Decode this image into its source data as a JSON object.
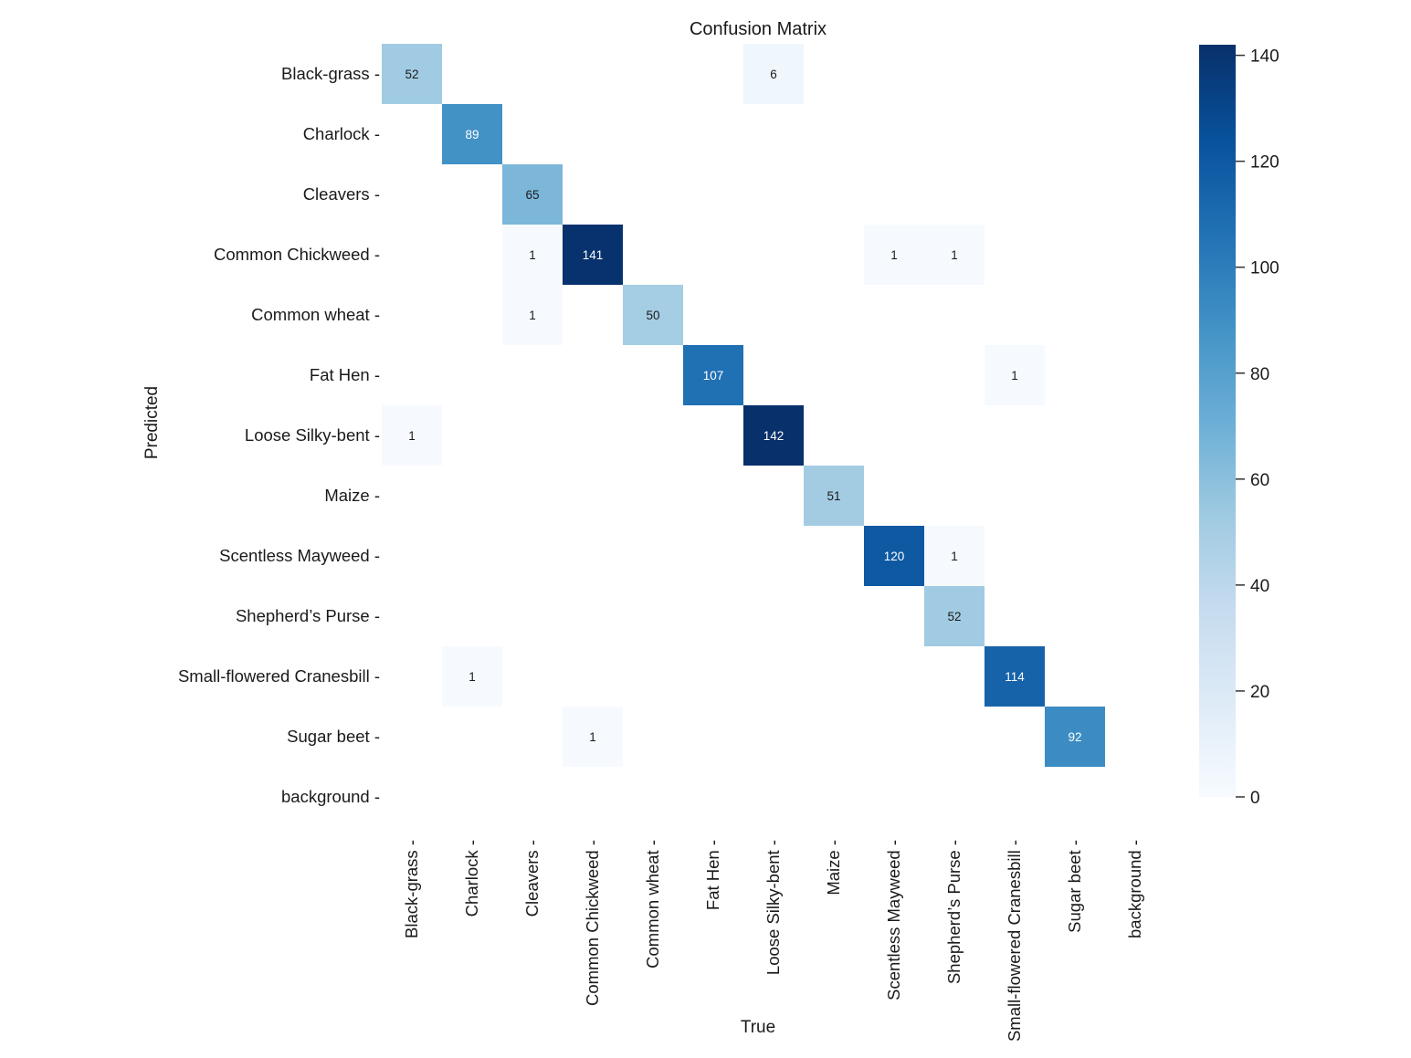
{
  "chart_data": {
    "type": "heatmap",
    "title": "Confusion Matrix",
    "xlabel": "True",
    "ylabel": "Predicted",
    "categories": [
      "Black-grass",
      "Charlock",
      "Cleavers",
      "Common Chickweed",
      "Common wheat",
      "Fat Hen",
      "Loose Silky-bent",
      "Maize",
      "Scentless Mayweed",
      "Shepherd’s Purse",
      "Small-flowered Cranesbill",
      "Sugar beet",
      "background"
    ],
    "cells": [
      {
        "row": 0,
        "col": 0,
        "value": 52
      },
      {
        "row": 0,
        "col": 6,
        "value": 6
      },
      {
        "row": 1,
        "col": 1,
        "value": 89
      },
      {
        "row": 2,
        "col": 2,
        "value": 65
      },
      {
        "row": 3,
        "col": 2,
        "value": 1
      },
      {
        "row": 3,
        "col": 3,
        "value": 141
      },
      {
        "row": 3,
        "col": 8,
        "value": 1
      },
      {
        "row": 3,
        "col": 9,
        "value": 1
      },
      {
        "row": 4,
        "col": 2,
        "value": 1
      },
      {
        "row": 4,
        "col": 4,
        "value": 50
      },
      {
        "row": 5,
        "col": 5,
        "value": 107
      },
      {
        "row": 5,
        "col": 10,
        "value": 1
      },
      {
        "row": 6,
        "col": 0,
        "value": 1
      },
      {
        "row": 6,
        "col": 6,
        "value": 142
      },
      {
        "row": 7,
        "col": 7,
        "value": 51
      },
      {
        "row": 8,
        "col": 8,
        "value": 120
      },
      {
        "row": 8,
        "col": 9,
        "value": 1
      },
      {
        "row": 9,
        "col": 9,
        "value": 52
      },
      {
        "row": 10,
        "col": 1,
        "value": 1
      },
      {
        "row": 10,
        "col": 10,
        "value": 114
      },
      {
        "row": 11,
        "col": 3,
        "value": 1
      },
      {
        "row": 11,
        "col": 11,
        "value": 92
      }
    ],
    "colorbar": {
      "min": 0,
      "max": 142,
      "ticks": [
        0,
        20,
        40,
        60,
        80,
        100,
        120,
        140
      ]
    },
    "colormap": "Blues",
    "colormap_stops": [
      "#f7fbff",
      "#deebf7",
      "#c6dbef",
      "#9ecae1",
      "#6baed6",
      "#4292c6",
      "#2171b5",
      "#08519c",
      "#08306b"
    ],
    "grid": false,
    "legend": "colorbar-right"
  }
}
